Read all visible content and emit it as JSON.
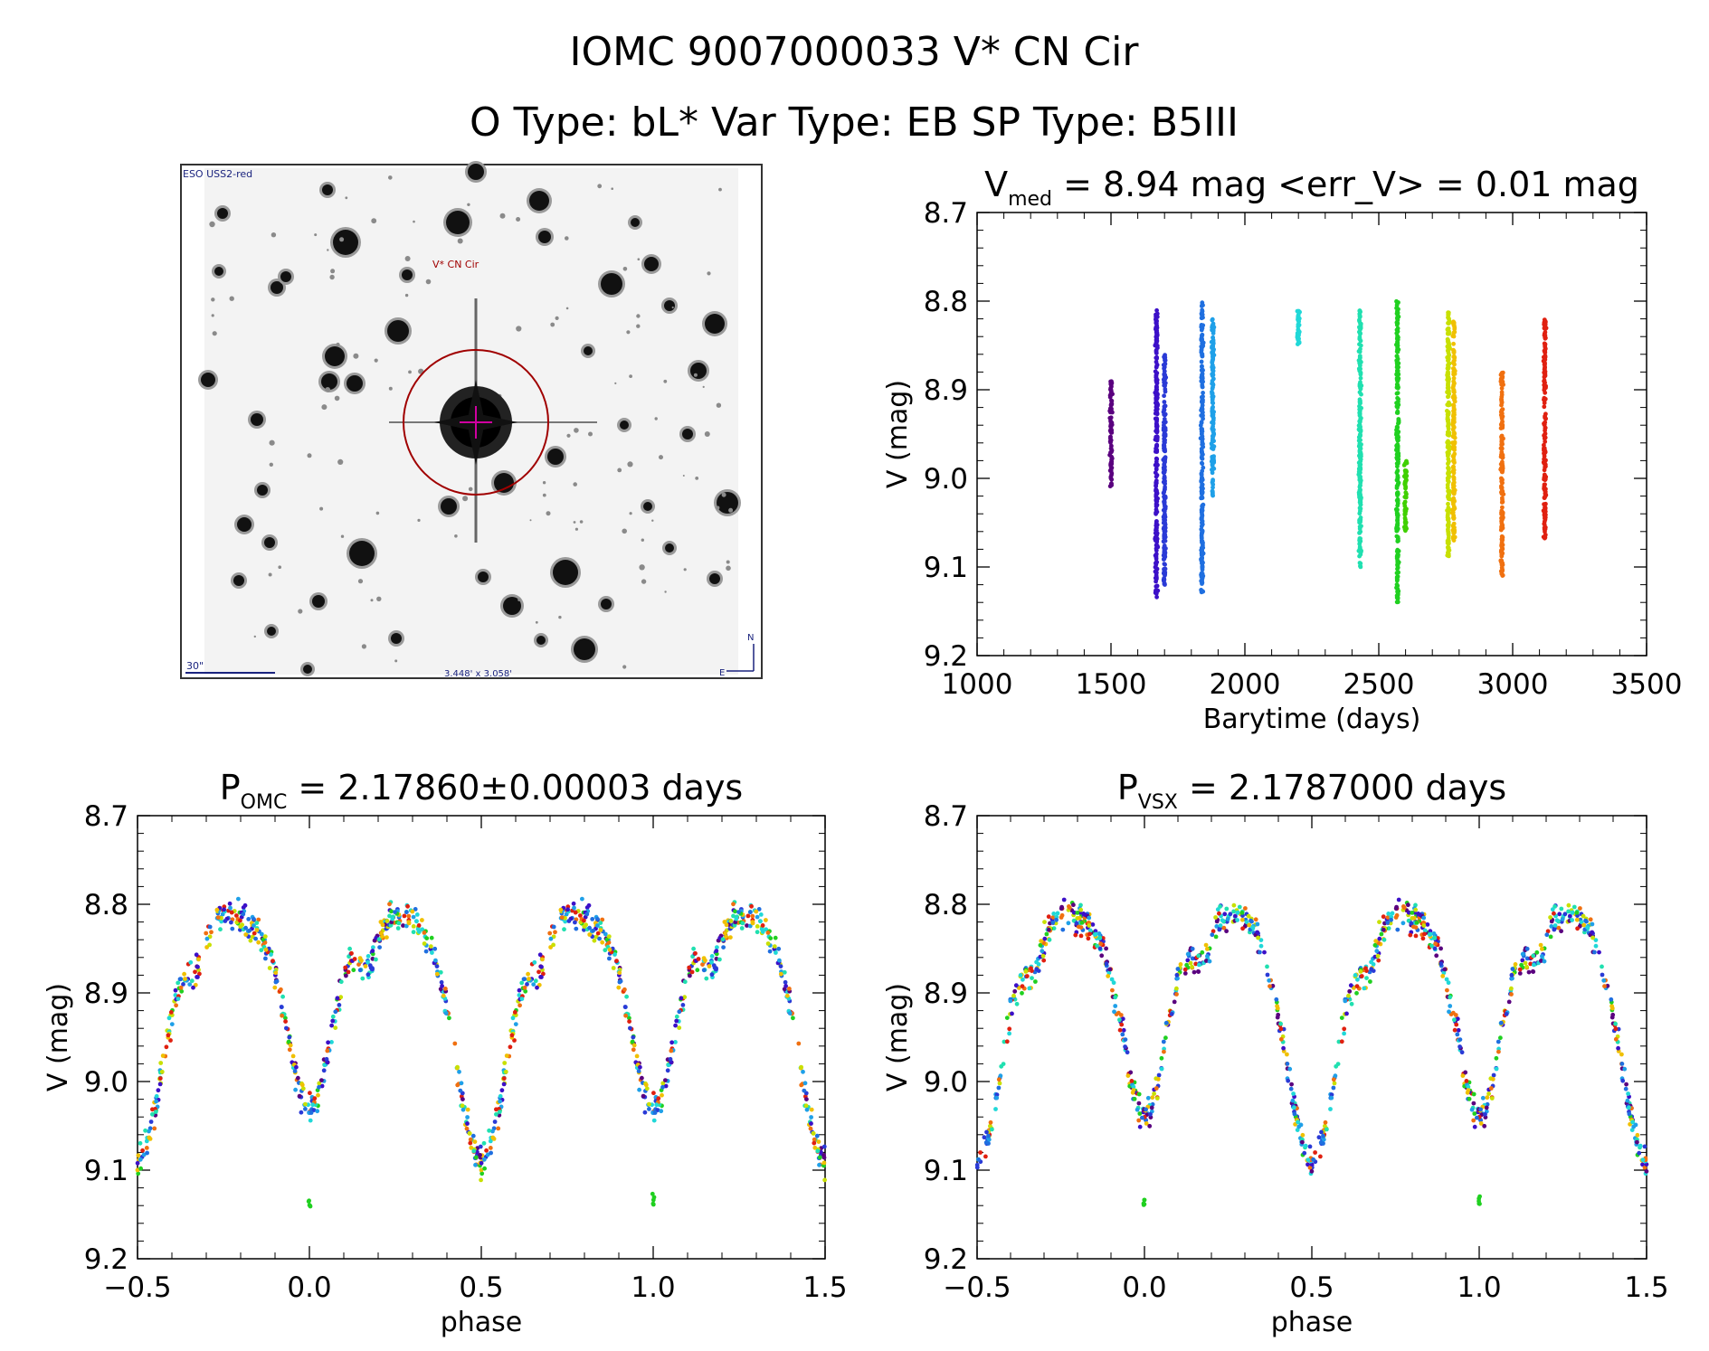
{
  "header": {
    "title_line1": "IOMC 9007000033   V* CN Cir",
    "title_line2": "O Type: bL*  Var Type: EB  SP Type: B5III"
  },
  "finder": {
    "survey_label": "ESO USS2-red",
    "target_label": "V* CN Cir",
    "scale_label": "30\"",
    "fov_label": "3.448' x 3.058'",
    "north_label": "N",
    "east_label": "E",
    "accent_color": "#a00000",
    "label_color": "#1a237e"
  },
  "chart_data": [
    {
      "id": "lightcurve",
      "type": "scatter",
      "title": "V_med = 8.94 mag <err_V> = 0.01 mag",
      "title_parts": {
        "main": "V",
        "sub": "med",
        "rest": " = 8.94 mag <err_V> = 0.01 mag"
      },
      "xlabel": "Barytime (days)",
      "ylabel": "V (mag)",
      "xlim": [
        1000,
        3500
      ],
      "ylim": [
        9.2,
        8.7
      ],
      "xticks": [
        "1000",
        "1500",
        "2000",
        "2500",
        "3000",
        "3500"
      ],
      "yticks": [
        "8.7",
        "8.8",
        "8.9",
        "9.0",
        "9.1",
        "9.2"
      ],
      "groups": [
        {
          "x": 1500,
          "y_min": 8.89,
          "y_max": 9.01,
          "color": "#5a007f",
          "note": "sparse"
        },
        {
          "x": 1670,
          "y_min": 8.81,
          "y_max": 9.14,
          "color": "#3c10c8"
        },
        {
          "x": 1700,
          "y_min": 8.86,
          "y_max": 9.12,
          "color": "#2a3ad6"
        },
        {
          "x": 1840,
          "y_min": 8.8,
          "y_max": 9.13,
          "color": "#1f6fe0"
        },
        {
          "x": 1880,
          "y_min": 8.82,
          "y_max": 9.02,
          "color": "#1fa0e8"
        },
        {
          "x": 2200,
          "y_min": 8.81,
          "y_max": 8.85,
          "color": "#20d8d8"
        },
        {
          "x": 2430,
          "y_min": 8.81,
          "y_max": 9.1,
          "color": "#20e0b0"
        },
        {
          "x": 2570,
          "y_min": 8.8,
          "y_max": 9.14,
          "color": "#20d020"
        },
        {
          "x": 2600,
          "y_min": 8.98,
          "y_max": 9.06,
          "color": "#40d000"
        },
        {
          "x": 2760,
          "y_min": 8.81,
          "y_max": 9.09,
          "color": "#c8e000"
        },
        {
          "x": 2780,
          "y_min": 8.82,
          "y_max": 9.07,
          "color": "#f0c000"
        },
        {
          "x": 2960,
          "y_min": 8.88,
          "y_max": 9.11,
          "color": "#f07010"
        },
        {
          "x": 3120,
          "y_min": 8.82,
          "y_max": 9.07,
          "color": "#e02010"
        }
      ]
    },
    {
      "id": "phase_omc",
      "type": "scatter",
      "title": "P_OMC = 2.17860±0.00003 days",
      "title_parts": {
        "main": "P",
        "sub": "OMC",
        "rest": " = 2.17860±0.00003 days"
      },
      "xlabel": "phase",
      "ylabel": "V (mag)",
      "xlim": [
        -0.5,
        1.5
      ],
      "ylim": [
        9.2,
        8.7
      ],
      "xticks": [
        "−0.5",
        "0.0",
        "0.5",
        "1.0",
        "1.5"
      ],
      "yticks": [
        "8.7",
        "8.8",
        "8.9",
        "9.0",
        "9.1",
        "9.2"
      ],
      "curve": {
        "primary_min_phase": 0.5,
        "primary_min_mag": 9.1,
        "secondary_min_phase": 0.0,
        "secondary_min_mag": 9.04,
        "max_mag_a": 8.83,
        "max_mag_b": 8.83
      }
    },
    {
      "id": "phase_vsx",
      "type": "scatter",
      "title": "P_VSX = 2.1787000 days",
      "title_parts": {
        "main": "P",
        "sub": "VSX",
        "rest": " = 2.1787000 days"
      },
      "xlabel": "phase",
      "ylabel": "V (mag)",
      "xlim": [
        -0.5,
        1.5
      ],
      "ylim": [
        9.2,
        8.7
      ],
      "xticks": [
        "−0.5",
        "0.0",
        "0.5",
        "1.0",
        "1.5"
      ],
      "yticks": [
        "8.7",
        "8.8",
        "8.9",
        "9.0",
        "9.1",
        "9.2"
      ],
      "curve": {
        "primary_min_phase": 0.5,
        "primary_min_mag": 9.1,
        "secondary_min_phase": 0.0,
        "secondary_min_mag": 9.05,
        "max_mag_a": 8.83,
        "max_mag_b": 8.83
      }
    }
  ]
}
